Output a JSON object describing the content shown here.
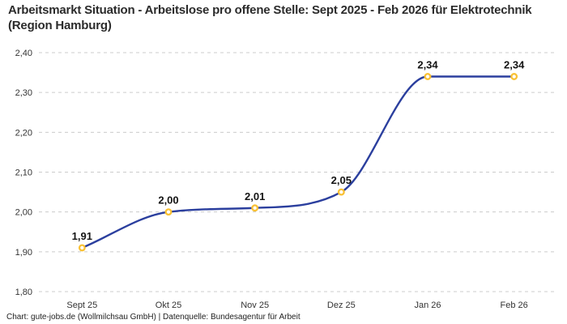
{
  "title": "Arbeitsmarkt Situation - Arbeitslose pro offene Stelle: Sept 2025 - Feb 2026 für Elektrotechnik (Region Hamburg)",
  "footer": "Chart: gute-jobs.de (Wollmilchsau GmbH) | Datenquelle: Bundesagentur für Arbeit",
  "chart_data": {
    "type": "line",
    "title": "Arbeitsmarkt Situation - Arbeitslose pro offene Stelle: Sept 2025 - Feb 2026 für Elektrotechnik (Region Hamburg)",
    "categories": [
      "Sept 25",
      "Okt 25",
      "Nov 25",
      "Dez 25",
      "Jan 26",
      "Feb 26"
    ],
    "series": [
      {
        "name": "Arbeitslose pro offene Stelle",
        "values": [
          1.91,
          2.0,
          2.01,
          2.05,
          2.34,
          2.34
        ],
        "data_labels": [
          "1,91",
          "2,00",
          "2,01",
          "2,05",
          "2,34",
          "2,34"
        ]
      }
    ],
    "xlabel": "",
    "ylabel": "",
    "ylim": [
      1.8,
      2.4
    ],
    "ytick_step": 0.1,
    "ytick_labels": [
      "1,80",
      "1,90",
      "2,00",
      "2,10",
      "2,20",
      "2,30",
      "2,40"
    ],
    "grid": "horizontal-dashed",
    "legend_position": "none",
    "curve": "monotone",
    "colors": {
      "line": "#2b3f9e",
      "marker_stroke": "#f9c135",
      "marker_fill": "#ffffff",
      "gridline": "#cccccc",
      "axis_text": "#333333",
      "data_label_text": "#141414"
    }
  }
}
